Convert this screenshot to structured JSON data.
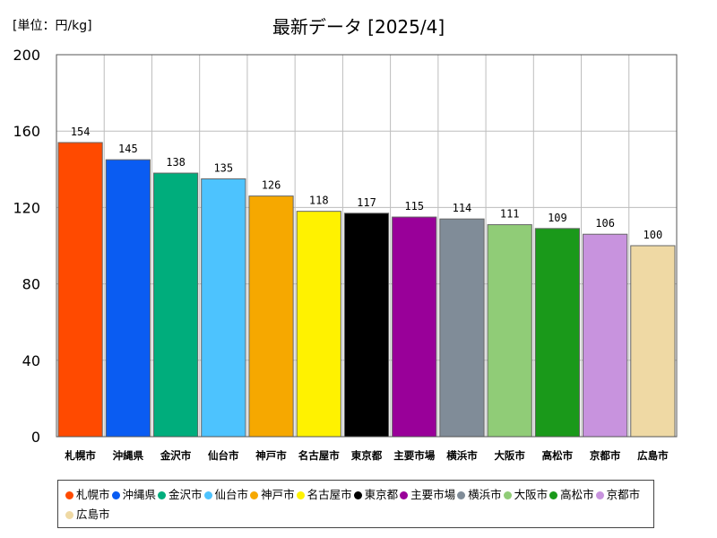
{
  "header": {
    "unit_label": "[単位：円/kg]",
    "title": "最新データ [2025/4]"
  },
  "chart_data": {
    "type": "bar",
    "categories": [
      "札幌市",
      "沖縄県",
      "金沢市",
      "仙台市",
      "神戸市",
      "名古屋市",
      "東京都",
      "主要市場",
      "横浜市",
      "大阪市",
      "高松市",
      "京都市",
      "広島市"
    ],
    "values": [
      154,
      145,
      138,
      135,
      126,
      118,
      117,
      115,
      114,
      111,
      109,
      106,
      100
    ],
    "colors": [
      "#ff4a00",
      "#0a5cf2",
      "#00ad7c",
      "#4dc3fe",
      "#f6a800",
      "#fff200",
      "#000000",
      "#990099",
      "#808c98",
      "#90cc77",
      "#1a991a",
      "#c893de",
      "#efd9a4"
    ],
    "ylim": [
      0,
      200
    ],
    "yticks": [
      0,
      40,
      80,
      120,
      160,
      200
    ],
    "grid": true,
    "legend_position": "bottom"
  }
}
